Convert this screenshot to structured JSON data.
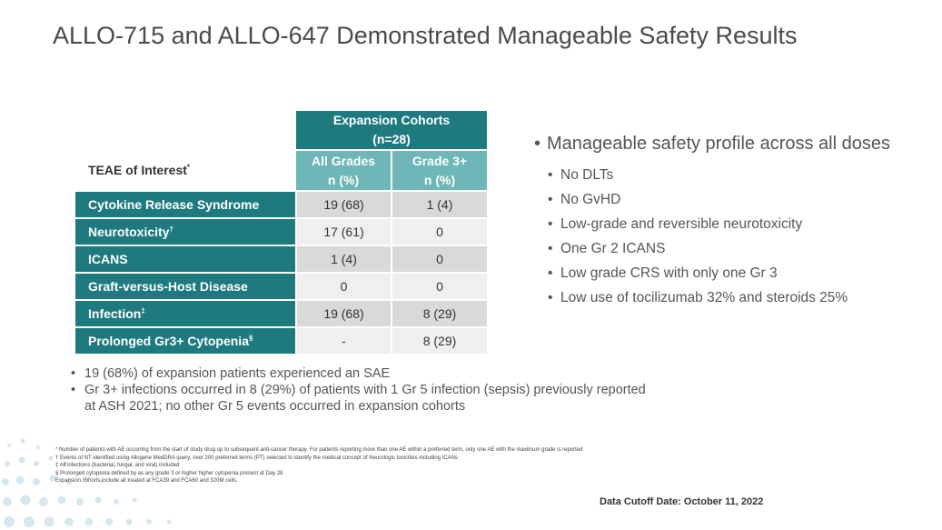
{
  "title": "ALLO-715 and ALLO-647 Demonstrated Manageable Safety Results",
  "table": {
    "teae_header": "TEAE of Interest",
    "teae_marker": "*",
    "expansion_header_line1": "Expansion Cohorts",
    "expansion_header_line2": "(n=28)",
    "col_all_grades_line1": "All Grades",
    "col_all_grades_line2": "n (%)",
    "col_grade3_line1": "Grade 3+",
    "col_grade3_line2": "n (%)",
    "rows": [
      {
        "label": "Cytokine Release Syndrome",
        "marker": "",
        "all": "19 (68)",
        "g3": "1 (4)"
      },
      {
        "label": "Neurotoxicity",
        "marker": "†",
        "all": "17 (61)",
        "g3": "0"
      },
      {
        "label": "ICANS",
        "marker": "",
        "all": "1 (4)",
        "g3": "0"
      },
      {
        "label": "Graft-versus-Host Disease",
        "marker": "",
        "all": "0",
        "g3": "0"
      },
      {
        "label": "Infection",
        "marker": "‡",
        "all": "19 (68)",
        "g3": "8 (29)"
      },
      {
        "label": "Prolonged Gr3+ Cytopenia",
        "marker": "§",
        "all": "-",
        "g3": "8 (29)"
      }
    ]
  },
  "right_bullets": {
    "main": "Manageable safety profile across all doses",
    "items": [
      "No DLTs",
      "No GvHD",
      "Low-grade and reversible neurotoxicity",
      "One Gr 2 ICANS",
      "Low grade CRS with only one Gr 3",
      "Low use of tocilizumab 32% and steroids 25%"
    ]
  },
  "bottom_bullets": [
    "19 (68%) of expansion patients experienced an SAE",
    "Gr 3+ infections occurred in 8 (29%) of patients with 1 Gr 5 infection (sepsis) previously reported at ASH 2021; no other Gr 5 events occurred in expansion cohorts"
  ],
  "footnotes": [
    "* Number of patients with AE occurring from the start of study drug up to subsequent anti-cancer therapy. For patients reporting more than one AE within a preferred term, only one AE with the maximum grade is reported",
    "† Events of NT identified using Allogene MedDRA query, over 200 preferred terms (PT) selected to identify the medical concept of Neurologic toxicities including ICANs",
    "‡ All infections (bacterial, fungal, and viral) included",
    "§ Prolonged cytopenia defined by as any grade 3 or higher higher cytopenia present at Day 28",
    "Expansion cohorts include all treated at FCA39 and FCA60 and 320M cells."
  ],
  "cutoff": "Data Cutoff Date: October 11, 2022",
  "colors": {
    "teal_dark": "#1e7a7e",
    "teal_light": "#6fb6b9",
    "cell_gray": "#d9d9d9",
    "cell_light": "#efefef"
  },
  "bullet_glyph": "•"
}
